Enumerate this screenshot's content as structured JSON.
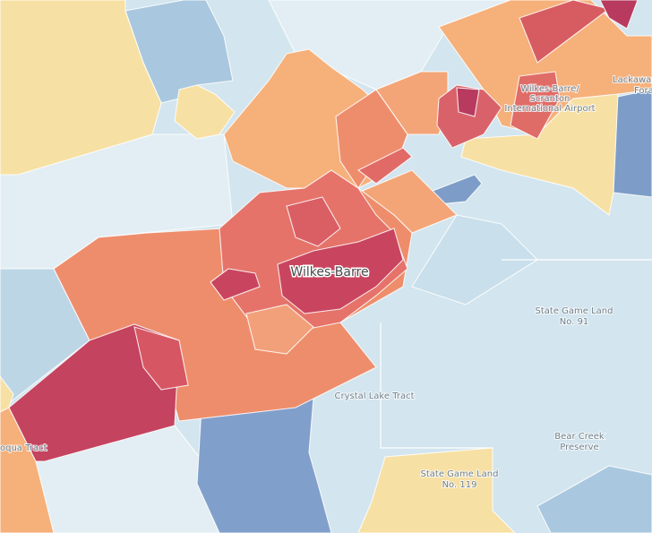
{
  "labels": [
    {
      "lines": [
        "Wilkes-Barre"
      ]
    },
    {
      "lines": [
        "State Game Land",
        "No. 91"
      ]
    },
    {
      "lines": [
        "Crystal Lake Tract"
      ]
    },
    {
      "lines": [
        "Bear Creek",
        "Preserve"
      ]
    },
    {
      "lines": [
        "State Game Land",
        "No. 119"
      ]
    },
    {
      "lines": [
        "Wilkes-Barre/",
        "Scranton",
        "International Airport"
      ]
    },
    {
      "lines": [
        "Lackawanna",
        "Fora"
      ]
    },
    {
      "lines": [
        "oqua Tract"
      ]
    }
  ]
}
